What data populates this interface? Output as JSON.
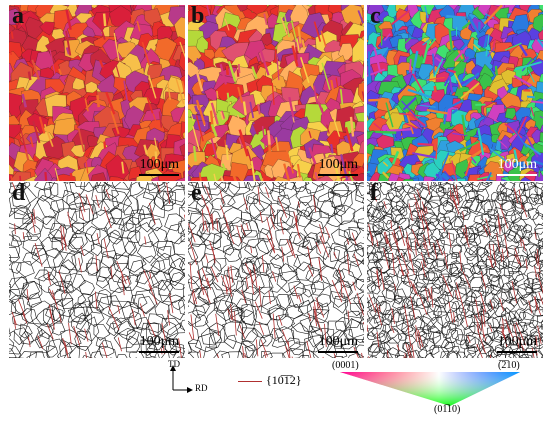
{
  "panels": [
    {
      "label": "a",
      "scale": "100μm",
      "type": "ebsd",
      "palette": [
        "#e8302a",
        "#d91f3a",
        "#f04a2a",
        "#c8283e",
        "#f26a2a",
        "#e0503a",
        "#f5a33a",
        "#d4367a",
        "#b83a8a",
        "#f7c04a"
      ]
    },
    {
      "label": "b",
      "scale": "100μm",
      "type": "ebsd",
      "palette": [
        "#e8302a",
        "#f26a2a",
        "#f5a33a",
        "#d4367a",
        "#c8283e",
        "#f7d04a",
        "#b5d93a",
        "#e05070",
        "#ffb060",
        "#9a3aa0"
      ]
    },
    {
      "label": "c",
      "scale": "100μm",
      "type": "ebsd",
      "palette": [
        "#2a7ae0",
        "#3ac24a",
        "#e0306a",
        "#8a3ad0",
        "#2ad0c0",
        "#e0c030",
        "#f0503a",
        "#5a40e0",
        "#40e070",
        "#d040c0",
        "#30a0e0",
        "#f08030"
      ]
    },
    {
      "label": "d",
      "scale": "100μm",
      "type": "boundary"
    },
    {
      "label": "e",
      "scale": "100μm",
      "type": "boundary"
    },
    {
      "label": "f",
      "scale": "100μm",
      "type": "boundary"
    }
  ],
  "axes": {
    "td": "TD",
    "rd": "RD"
  },
  "legend": {
    "twin_label": "{10̅1̅2}",
    "twin_color": "#b03030"
  },
  "ipf": {
    "corner_0001": "(0001)",
    "corner_12bar10": "(̅2̅10)",
    "corner_01bar10": "(01̅10)"
  }
}
